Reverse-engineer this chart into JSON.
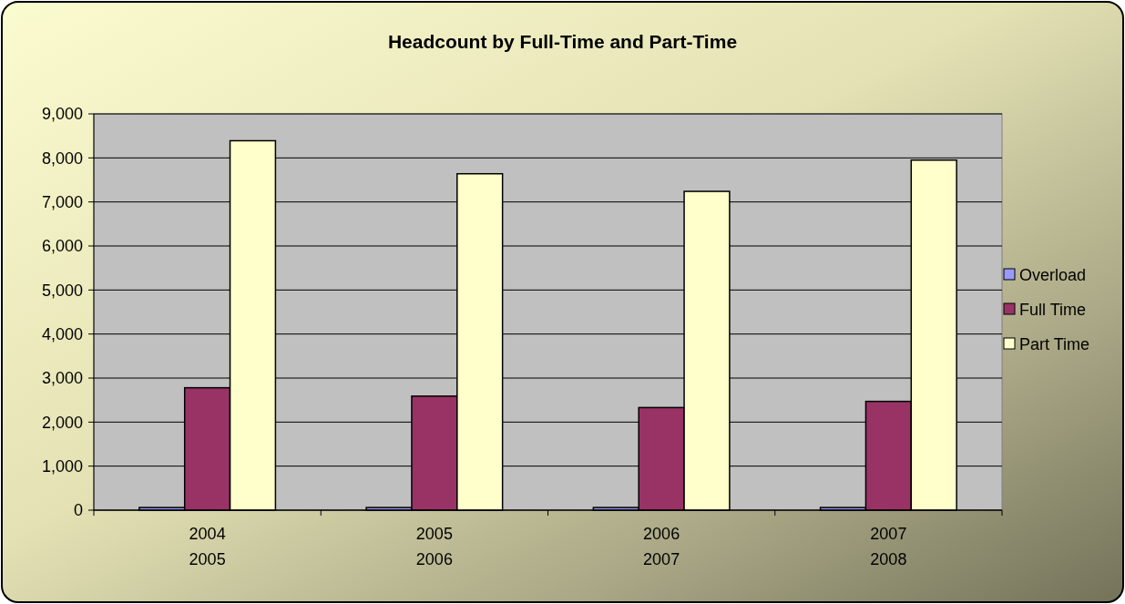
{
  "chart_data": {
    "type": "bar",
    "title": "Headcount by Full-Time and Part-Time",
    "categories": [
      "2004\n2005",
      "2005\n2006",
      "2006\n2007",
      "2007\n2008"
    ],
    "series": [
      {
        "name": "Overload",
        "color": "#9999ff",
        "values": [
          60,
          60,
          60,
          60
        ]
      },
      {
        "name": "Full Time",
        "color": "#993366",
        "values": [
          2780,
          2590,
          2330,
          2470
        ]
      },
      {
        "name": "Part Time",
        "color": "#ffffcc",
        "values": [
          8390,
          7640,
          7240,
          7950
        ]
      }
    ],
    "ylim": [
      0,
      9000
    ],
    "yticks": [
      {
        "value": 0,
        "label": "0"
      },
      {
        "value": 1000,
        "label": "1,000"
      },
      {
        "value": 2000,
        "label": "2,000"
      },
      {
        "value": 3000,
        "label": "3,000"
      },
      {
        "value": 4000,
        "label": "4,000"
      },
      {
        "value": 5000,
        "label": "5,000"
      },
      {
        "value": 6000,
        "label": "6,000"
      },
      {
        "value": 7000,
        "label": "7,000"
      },
      {
        "value": 8000,
        "label": "8,000"
      },
      {
        "value": 9000,
        "label": "9,000"
      }
    ],
    "grid": "y",
    "legend": "right"
  }
}
